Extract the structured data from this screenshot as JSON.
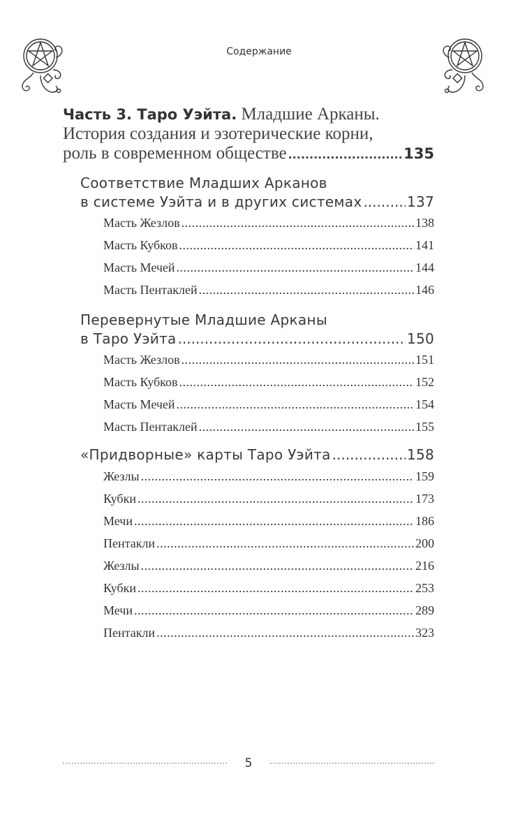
{
  "running_header": "Содержание",
  "part": {
    "bold_title": "Часть 3. Таро Уэйта.",
    "line1_rest": "Младшие Арканы.",
    "line2": "История создания и эзотерические корни,",
    "line3": "роль в современном обществе",
    "page": "135"
  },
  "sections": [
    {
      "line1": "Соответствие Младших Арканов",
      "line2": "в системе Уэйта и в других системах",
      "page": "137",
      "items": [
        {
          "label": "Масть Жезлов",
          "page": "138"
        },
        {
          "label": "Масть Кубков",
          "page": "141"
        },
        {
          "label": "Масть Мечей",
          "page": "144"
        },
        {
          "label": "Масть Пентаклей",
          "page": "146"
        }
      ]
    },
    {
      "line1": "Перевернутые Младшие Арканы",
      "line2": "в Таро Уэйта",
      "page": "150",
      "items": [
        {
          "label": "Масть Жезлов",
          "page": "151"
        },
        {
          "label": "Масть Кубков",
          "page": "152"
        },
        {
          "label": "Масть Мечей",
          "page": "154"
        },
        {
          "label": "Масть Пентаклей",
          "page": "155"
        }
      ]
    },
    {
      "line2": "«Придворные» карты Таро Уэйта",
      "page": "158",
      "items": [
        {
          "label": "Жезлы",
          "page": "159"
        },
        {
          "label": "Кубки",
          "page": "173"
        },
        {
          "label": "Мечи",
          "page": "186"
        },
        {
          "label": "Пентакли",
          "page": "200"
        },
        {
          "label": "Жезлы",
          "page": "216"
        },
        {
          "label": "Кубки",
          "page": "253"
        },
        {
          "label": "Мечи",
          "page": "289"
        },
        {
          "label": "Пентакли",
          "page": "323"
        }
      ]
    }
  ],
  "page_number": "5",
  "icons": [
    "pentacle-ornament-icon"
  ]
}
